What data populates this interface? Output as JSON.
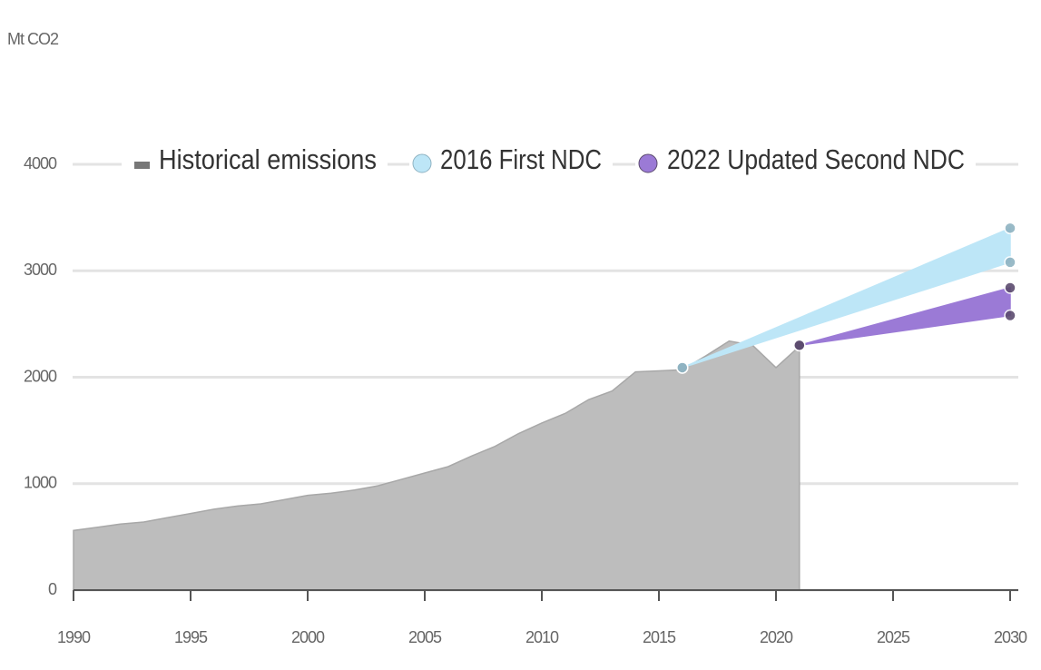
{
  "chart_data": {
    "type": "area",
    "y_label": "Mt CO2",
    "xlim": [
      1990,
      2030
    ],
    "xticks": [
      1990,
      1995,
      2000,
      2005,
      2010,
      2015,
      2020,
      2025,
      2030
    ],
    "ylim": [
      0,
      4000
    ],
    "yticks": [
      0,
      1000,
      2000,
      3000,
      4000
    ],
    "grid": true,
    "legend": "top",
    "series": [
      {
        "name": "Historical emissions",
        "color": "#bdbdbd",
        "x": [
          1990,
          1991,
          1992,
          1993,
          1994,
          1995,
          1996,
          1997,
          1998,
          1999,
          2000,
          2001,
          2002,
          2003,
          2004,
          2005,
          2006,
          2007,
          2008,
          2009,
          2010,
          2011,
          2012,
          2013,
          2014,
          2015,
          2016,
          2017,
          2018,
          2019,
          2020,
          2021
        ],
        "values": [
          560,
          590,
          620,
          640,
          680,
          720,
          760,
          790,
          810,
          850,
          890,
          910,
          940,
          980,
          1040,
          1100,
          1160,
          1260,
          1350,
          1470,
          1570,
          1660,
          1790,
          1870,
          2050,
          2060,
          2070,
          2200,
          2340,
          2300,
          2090,
          2290
        ]
      },
      {
        "name": "2016 First NDC",
        "color": "#bde6f7",
        "marker_color": "#8fb3c2",
        "x": [
          2016,
          2030
        ],
        "high": [
          2090,
          3400
        ],
        "low": [
          2090,
          3080
        ]
      },
      {
        "name": "2022 Updated Second NDC",
        "color": "#9b7ad6",
        "marker_color": "#5c4b6e",
        "x": [
          2021,
          2030
        ],
        "high": [
          2300,
          2840
        ],
        "low": [
          2300,
          2580
        ]
      }
    ]
  }
}
